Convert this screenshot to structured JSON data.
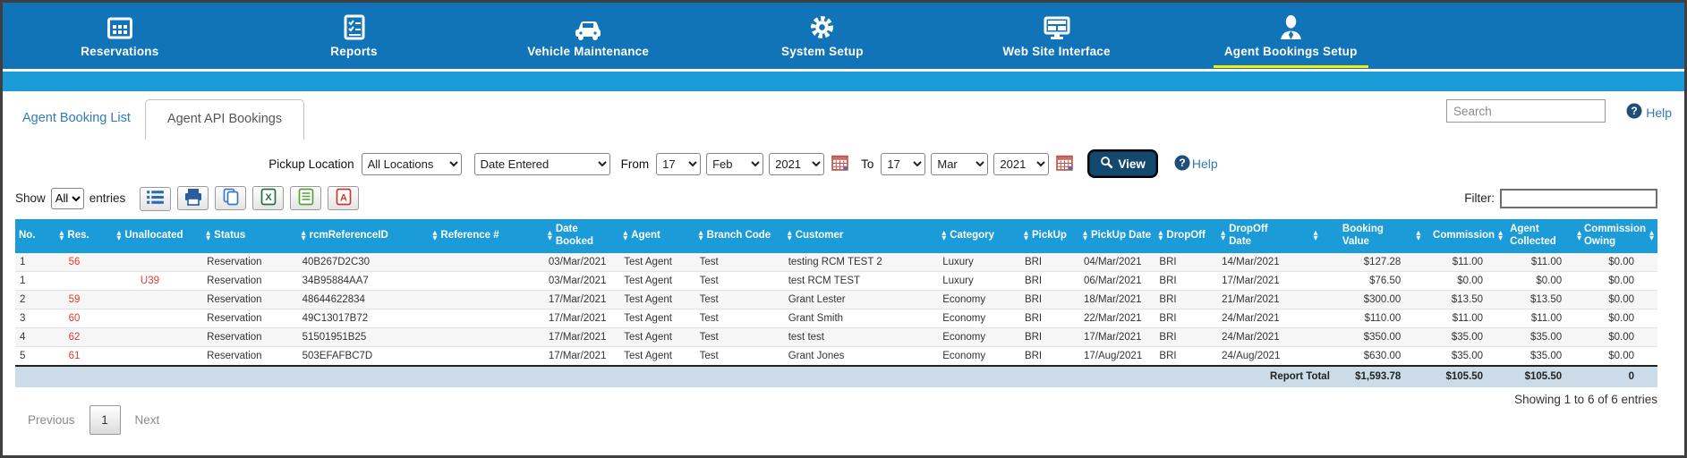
{
  "nav": {
    "items": [
      {
        "label": "Reservations",
        "icon": "calendar",
        "active": false
      },
      {
        "label": "Reports",
        "icon": "report",
        "active": false
      },
      {
        "label": "Vehicle Maintenance",
        "icon": "car",
        "active": false
      },
      {
        "label": "System Setup",
        "icon": "gear",
        "active": false
      },
      {
        "label": "Web Site Interface",
        "icon": "monitor",
        "active": false
      },
      {
        "label": "Agent Bookings Setup",
        "icon": "agent",
        "active": true
      }
    ]
  },
  "tabs": {
    "booking_list": "Agent Booking List",
    "api_bookings": "Agent API Bookings"
  },
  "topbar": {
    "search_placeholder": "Search",
    "help_label": "Help"
  },
  "filters": {
    "pickup_location_label": "Pickup Location",
    "pickup_location_value": "All Locations",
    "date_type_value": "Date Entered",
    "from_label": "From",
    "from_day": "17",
    "from_month": "Feb",
    "from_year": "2021",
    "to_label": "To",
    "to_day": "17",
    "to_month": "Mar",
    "to_year": "2021",
    "view_label": "View",
    "help_label": "Help"
  },
  "table_controls": {
    "show_label": "Show",
    "show_value": "All",
    "entries_label": "entries",
    "buttons": [
      "menu-list",
      "printer",
      "copy",
      "excel",
      "csv",
      "pdf"
    ],
    "filter_label": "Filter:",
    "filter_value": ""
  },
  "table": {
    "columns": [
      "No.",
      "Res.",
      "Unallocated",
      "Status",
      "rcmReferenceID",
      "Reference #",
      "Date Booked",
      "Agent",
      "Branch Code",
      "Customer",
      "Category",
      "PickUp",
      "PickUp Date",
      "DropOff",
      "DropOff Date",
      "",
      "Booking Value",
      "Commission",
      "Agent Collected",
      "Commission Owing"
    ],
    "rows": [
      [
        "1",
        "56",
        "",
        "Reservation",
        "40B267D2C30",
        "",
        "03/Mar/2021",
        "Test Agent",
        "Test",
        "testing RCM TEST 2",
        "Luxury",
        "BRI",
        "04/Mar/2021",
        "BRI",
        "14/Mar/2021",
        "",
        "$127.28",
        "$11.00",
        "$11.00",
        "$0.00"
      ],
      [
        "1",
        "",
        "U39",
        "Reservation",
        "34B95884AA7",
        "",
        "03/Mar/2021",
        "Test Agent",
        "Test",
        "test RCM TEST",
        "Luxury",
        "BRI",
        "06/Mar/2021",
        "BRI",
        "17/Mar/2021",
        "",
        "$76.50",
        "$0.00",
        "$0.00",
        "$0.00"
      ],
      [
        "2",
        "59",
        "",
        "Reservation",
        "48644622834",
        "",
        "17/Mar/2021",
        "Test Agent",
        "Test",
        "Grant Lester",
        "Economy",
        "BRI",
        "18/Mar/2021",
        "BRI",
        "21/Mar/2021",
        "",
        "$300.00",
        "$13.50",
        "$13.50",
        "$0.00"
      ],
      [
        "3",
        "60",
        "",
        "Reservation",
        "49C13017B72",
        "",
        "17/Mar/2021",
        "Test Agent",
        "Test",
        "Grant Smith",
        "Economy",
        "BRI",
        "22/Mar/2021",
        "BRI",
        "24/Mar/2021",
        "",
        "$110.00",
        "$11.00",
        "$11.00",
        "$0.00"
      ],
      [
        "4",
        "62",
        "",
        "Reservation",
        "51501951B25",
        "",
        "17/Mar/2021",
        "Test Agent",
        "Test",
        "test test",
        "Economy",
        "BRI",
        "17/Mar/2021",
        "BRI",
        "24/Mar/2021",
        "",
        "$350.00",
        "$35.00",
        "$35.00",
        "$0.00"
      ],
      [
        "5",
        "61",
        "",
        "Reservation",
        "503EFAFBC7D",
        "",
        "17/Mar/2021",
        "Test Agent",
        "Test",
        "Grant Jones",
        "Economy",
        "BRI",
        "17/Aug/2021",
        "BRI",
        "24/Aug/2021",
        "",
        "$630.00",
        "$35.00",
        "$35.00",
        "$0.00"
      ]
    ],
    "total_row": {
      "label": "Report Total",
      "values": [
        "$1,593.78",
        "$105.50",
        "$105.50",
        "0"
      ]
    }
  },
  "pagination": {
    "previous": "Previous",
    "page": "1",
    "next": "Next",
    "showing": "Showing 1 to 6 of 6 entries"
  },
  "colors": {
    "nav_bar": "#1274b8",
    "strip": "#1b9cd9",
    "table_header": "#1b9cd9",
    "active_underline": "#f2ee0f",
    "link": "#337ab7",
    "reservation_link": "#e23b2e",
    "total_row_bg": "#cbdce8"
  }
}
